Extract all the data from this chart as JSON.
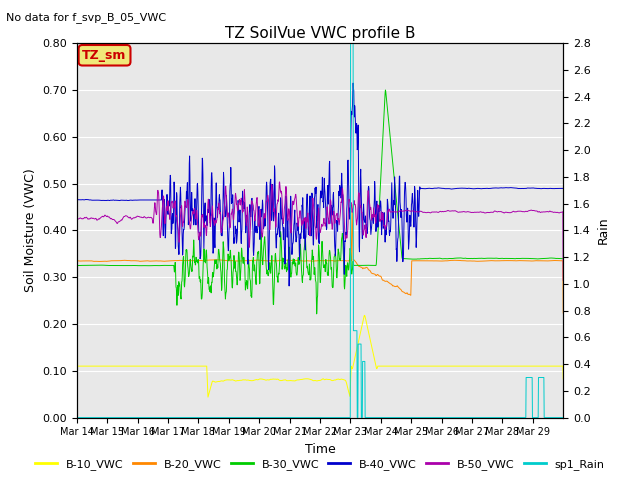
{
  "title": "TZ SoilVue VWC profile B",
  "subtitle": "No data for f_svp_B_05_VWC",
  "xlabel": "Time",
  "ylabel_left": "Soil Moisture (VWC)",
  "ylabel_right": "Rain",
  "ylim_left": [
    0.0,
    0.8
  ],
  "ylim_right": [
    0.0,
    2.8
  ],
  "yticks_left": [
    0.0,
    0.1,
    0.2,
    0.3,
    0.4,
    0.5,
    0.6,
    0.7,
    0.8
  ],
  "yticks_right": [
    0.0,
    0.2,
    0.4,
    0.6,
    0.8,
    1.0,
    1.2,
    1.4,
    1.6,
    1.8,
    2.0,
    2.2,
    2.4,
    2.6,
    2.8
  ],
  "xtick_labels": [
    "Mar 14",
    "Mar 15",
    "Mar 16",
    "Mar 17",
    "Mar 18",
    "Mar 19",
    "Mar 20",
    "Mar 21",
    "Mar 22",
    "Mar 23",
    "Mar 24",
    "Mar 25",
    "Mar 26",
    "Mar 27",
    "Mar 28",
    "Mar 29"
  ],
  "colors": {
    "B10": "#ffff00",
    "B20": "#ff8800",
    "B30": "#00cc00",
    "B40": "#0000cc",
    "B50": "#aa00aa",
    "rain": "#00cccc",
    "tz_sm_box_edge": "#cc0000",
    "tz_sm_text": "#cc0000",
    "tz_sm_box_face": "#f0e87a",
    "background": "#e8e8e8",
    "grid": "#ffffff"
  },
  "legend_labels": [
    "B-10_VWC",
    "B-20_VWC",
    "B-30_VWC",
    "B-40_VWC",
    "B-50_VWC",
    "sp1_Rain"
  ],
  "tz_sm_label": "TZ_sm",
  "subtitle_text": "No data for f_svp_B_05_VWC"
}
